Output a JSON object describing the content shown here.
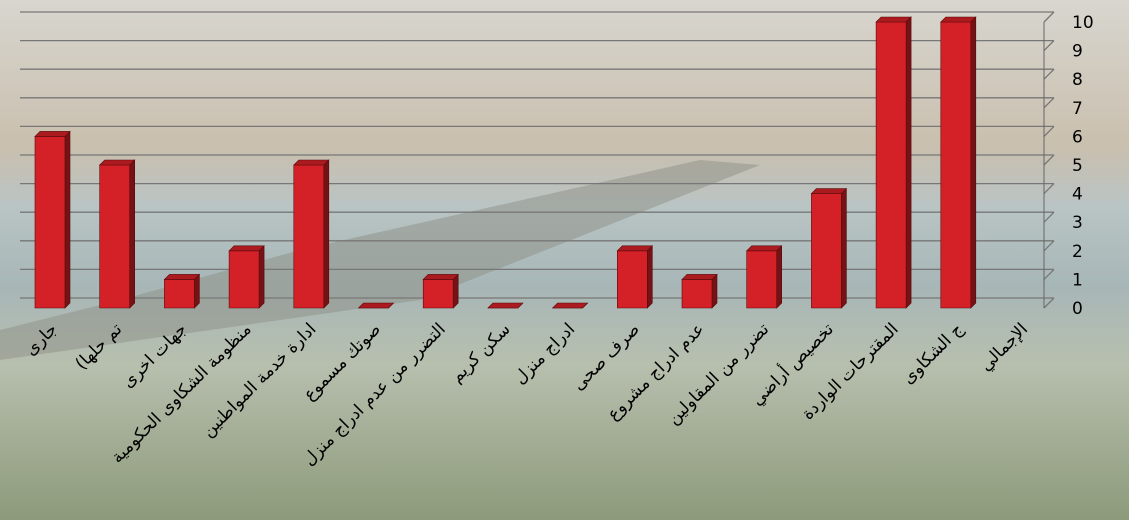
{
  "chart_data": {
    "type": "bar3d",
    "categories": [
      "جارى",
      "(تم حلها",
      "جهات اخرى",
      "منظومة الشكاوى الحكومية",
      "ادارة خدمة المواطنين",
      "صوتك مسموع",
      "التضرر من عدم ادراج منزل",
      "سكن كريم",
      "ادراج منزل",
      "صرف صحى",
      "عدم ادراج مشروع",
      "تضرر من المقاولين",
      "تخصيص أراضي",
      "المقترحات الواردة",
      "ج الشكاوى",
      "الإجمالي"
    ],
    "values": [
      6,
      5,
      1,
      2,
      5,
      0,
      1,
      0,
      0,
      2,
      1,
      2,
      4,
      10,
      10,
      null
    ],
    "color": "#d42027",
    "ylim": [
      0,
      10
    ],
    "yticks": [
      0,
      1,
      2,
      3,
      4,
      5,
      6,
      7,
      8,
      9,
      10
    ],
    "grid": true
  }
}
